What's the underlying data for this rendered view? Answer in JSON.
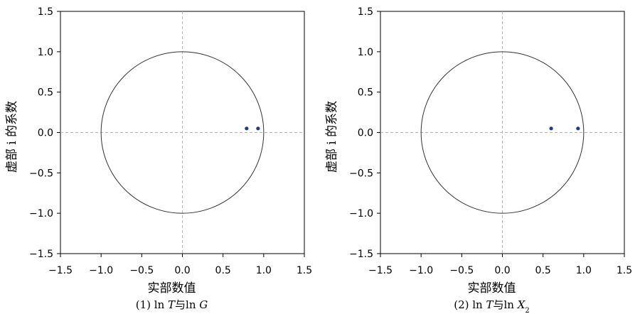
{
  "chart_data": [
    {
      "type": "scatter",
      "title": "",
      "caption": {
        "prefix": "(1) ln ",
        "t": "T",
        "mid": "与ln ",
        "var": "G",
        "sub": ""
      },
      "xlabel": "实部数值",
      "ylabel": "虚部 i 的系数",
      "xlim": [
        -1.5,
        1.5
      ],
      "ylim": [
        -1.5,
        1.5
      ],
      "xticks": [
        "−1.5",
        "−1.0",
        "−0.5",
        "0.0",
        "0.5",
        "1.0",
        "1.5"
      ],
      "yticks": [
        "1.5",
        "1.0",
        "0.5",
        "0.0",
        "−0.5",
        "−1.0",
        "−1.5"
      ],
      "grid": false,
      "reference_lines": {
        "x": 0,
        "y": 0
      },
      "unit_circle": {
        "radius": 1
      },
      "points": [
        {
          "x": 0.79,
          "y": 0.05
        },
        {
          "x": 0.93,
          "y": 0.05
        }
      ],
      "point_color": "#1f3a8a"
    },
    {
      "type": "scatter",
      "title": "",
      "caption": {
        "prefix": "(2) ln ",
        "t": "T",
        "mid": "与ln ",
        "var": "X",
        "sub": "2"
      },
      "xlabel": "实部数值",
      "ylabel": "虚部 i 的系数",
      "xlim": [
        -1.5,
        1.5
      ],
      "ylim": [
        -1.5,
        1.5
      ],
      "xticks": [
        "−1.5",
        "−1.0",
        "−0.5",
        "0.0",
        "0.5",
        "1.0",
        "1.5"
      ],
      "yticks": [
        "1.5",
        "1.0",
        "0.5",
        "0.0",
        "−0.5",
        "−1.0",
        "−1.5"
      ],
      "grid": false,
      "reference_lines": {
        "x": 0,
        "y": 0
      },
      "unit_circle": {
        "radius": 1
      },
      "points": [
        {
          "x": 0.6,
          "y": 0.05
        },
        {
          "x": 0.93,
          "y": 0.05
        }
      ],
      "point_color": "#1f3a8a"
    }
  ]
}
